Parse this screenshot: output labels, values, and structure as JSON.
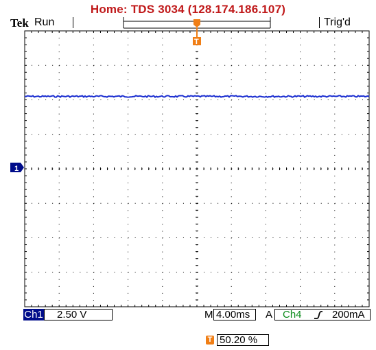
{
  "header": {
    "title": "Home:  TDS 3034    (128.174.186.107)",
    "brand": "Tek",
    "run_state": "Run",
    "trigger_state": "Trig'd"
  },
  "colors": {
    "title": "#c0191a",
    "trace": "#1c2fd0",
    "grid": "#000000",
    "channel_marker": "#000c8a",
    "trigger_marker": "#f07e15",
    "trigger_source": "#0a8a1a"
  },
  "markers": {
    "channel_marker_label": "1",
    "trigger_marker_label": "T",
    "trigger_position_icon": "T"
  },
  "status_bar": {
    "channel_label": "Ch1",
    "channel_scale": "2.50 V",
    "timebase_prefix": "M",
    "timebase": "4.00ms",
    "trigger_mode": "A",
    "trigger_source": "Ch4",
    "trigger_slope_icon": "rising-edge-icon",
    "trigger_level": "200mA"
  },
  "trigger_position": {
    "value": "50.20 %",
    "fraction": 0.502
  },
  "graticule": {
    "divisions_x": 10,
    "divisions_y": 8
  },
  "trace": {
    "level_divisions_above_center": 2.1
  }
}
